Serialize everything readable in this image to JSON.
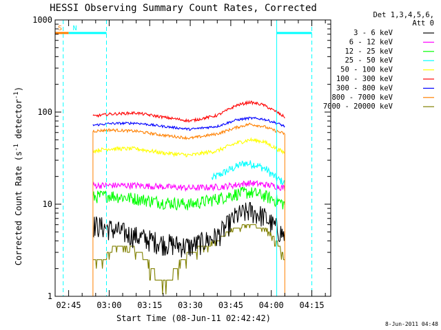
{
  "chart_data": {
    "type": "line",
    "title": "HESSI Observing Summary Count Rates, Corrected",
    "xlabel": "Start Time (08-Jun-11 02:42:42)",
    "ylabel_main": "Corrected Count Rate (s",
    "ylabel_sup1": "-1",
    "ylabel_mid": " detector",
    "ylabel_sup2": "-1",
    "ylabel_end": ")",
    "yscale": "log",
    "ylim": [
      1,
      1000
    ],
    "xlim": [
      "02:40",
      "04:22"
    ],
    "x_ticks": [
      "02:45",
      "03:00",
      "03:15",
      "03:30",
      "03:45",
      "04:00",
      "04:15"
    ],
    "y_ticks": [
      "1",
      "10",
      "100",
      "1000"
    ],
    "legend_header": [
      "Det 1,3,4,5,6,",
      "Att 0"
    ],
    "legend_position": "right",
    "data_start": "02:54",
    "data_end": "04:05",
    "series": [
      {
        "name": "3 - 6 keV",
        "color": "#000000",
        "noise": 0.28,
        "x": [
          "02:54",
          "03:00",
          "03:10",
          "03:20",
          "03:30",
          "03:40",
          "03:47",
          "03:52",
          "03:57",
          "04:02",
          "04:05"
        ],
        "values": [
          6.0,
          5.5,
          4.5,
          3.8,
          3.5,
          4.5,
          7.5,
          8.5,
          7.5,
          5.5,
          4.5
        ]
      },
      {
        "name": "6 - 12 keV",
        "color": "#ff00ff",
        "noise": 0.08,
        "x": [
          "02:54",
          "03:10",
          "03:30",
          "03:42",
          "03:52",
          "04:00",
          "04:05"
        ],
        "values": [
          16,
          16,
          15,
          15.5,
          17,
          16,
          15
        ]
      },
      {
        "name": "12 - 25 keV",
        "color": "#00ff00",
        "noise": 0.16,
        "x": [
          "02:54",
          "03:00",
          "03:10",
          "03:20",
          "03:30",
          "03:40",
          "03:47",
          "03:52",
          "03:57",
          "04:02",
          "04:05"
        ],
        "values": [
          12,
          12.5,
          11.5,
          10.5,
          10,
          11.5,
          13,
          13.5,
          12.5,
          11,
          10
        ]
      },
      {
        "name": "25 - 50 keV",
        "color": "#00ffff",
        "noise": 0.1,
        "x": [
          "03:38",
          "03:45",
          "03:50",
          "03:54",
          "03:58",
          "04:02",
          "04:05"
        ],
        "values": [
          19,
          24,
          28,
          27,
          24,
          19,
          17
        ]
      },
      {
        "name": "50 - 100 keV",
        "color": "#ffff00",
        "noise": 0.05,
        "x": [
          "02:54",
          "03:00",
          "03:10",
          "03:20",
          "03:30",
          "03:40",
          "03:47",
          "03:52",
          "03:57",
          "04:02",
          "04:05"
        ],
        "values": [
          38,
          40,
          40,
          36,
          34,
          38,
          46,
          50,
          48,
          40,
          36
        ]
      },
      {
        "name": "100 - 300 keV",
        "color": "#ff0000",
        "noise": 0.035,
        "x": [
          "02:54",
          "03:00",
          "03:10",
          "03:20",
          "03:30",
          "03:40",
          "03:47",
          "03:52",
          "03:57",
          "04:02",
          "04:05"
        ],
        "values": [
          90,
          95,
          98,
          88,
          80,
          92,
          118,
          128,
          120,
          100,
          88
        ]
      },
      {
        "name": "300 - 800 keV",
        "color": "#0000ff",
        "noise": 0.03,
        "x": [
          "02:54",
          "03:00",
          "03:10",
          "03:20",
          "03:30",
          "03:40",
          "03:47",
          "03:52",
          "03:57",
          "04:02",
          "04:05"
        ],
        "values": [
          72,
          75,
          76,
          70,
          65,
          70,
          82,
          86,
          84,
          76,
          70
        ]
      },
      {
        "name": "800 - 7000 keV",
        "color": "#ff8000",
        "noise": 0.035,
        "x": [
          "02:54",
          "03:00",
          "03:10",
          "03:20",
          "03:30",
          "03:40",
          "03:47",
          "03:52",
          "03:57",
          "04:02",
          "04:05"
        ],
        "values": [
          62,
          64,
          62,
          56,
          52,
          58,
          68,
          74,
          70,
          62,
          58
        ]
      },
      {
        "name": "7000 - 20000 keV",
        "color": "#808000",
        "noise": 0,
        "x": [
          "02:54",
          "02:58",
          "03:02",
          "03:08",
          "03:14",
          "03:18",
          "03:22",
          "03:27",
          "03:30",
          "03:35",
          "03:40",
          "03:46",
          "03:52",
          "03:58",
          "04:02",
          "04:05"
        ],
        "values": [
          2.5,
          2.5,
          3.5,
          3.5,
          2.5,
          1.5,
          1.5,
          2.5,
          3.0,
          3.5,
          4.0,
          5.5,
          6.0,
          5.5,
          4.0,
          2.5
        ]
      }
    ],
    "flags": [
      {
        "label": "S",
        "color": "#ff8000",
        "segments": [
          [
            "02:40",
            "02:45"
          ]
        ]
      },
      {
        "label": "N",
        "color": "#00ffff",
        "segments": [
          [
            "02:45",
            "02:59"
          ],
          [
            "04:02",
            "04:15"
          ]
        ]
      }
    ],
    "vlines": [
      {
        "x": "02:43",
        "style": "dashed"
      },
      {
        "x": "02:59",
        "style": "dashed"
      },
      {
        "x": "04:02",
        "style": "solid"
      },
      {
        "x": "04:15",
        "style": "dashed"
      }
    ],
    "vline_color": "#00ffff",
    "footer": "8-Jun-2011 04:48"
  }
}
